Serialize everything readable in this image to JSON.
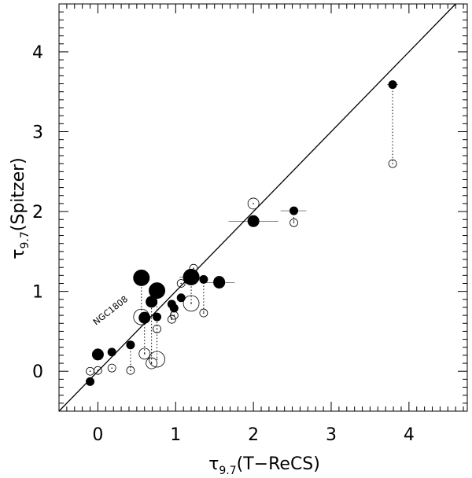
{
  "chart_data": {
    "type": "scatter",
    "title": "",
    "xlabel": "τ9.7(T−ReCS)",
    "ylabel": "τ9.7(Spitzer)",
    "x_label_main": "τ",
    "x_label_sub": "9.7",
    "x_label_rest": "(T−ReCS)",
    "y_label_main": "τ",
    "y_label_sub": "9.7",
    "y_label_rest": "(Spitzer)",
    "xlim": [
      -0.5,
      4.75
    ],
    "ylim": [
      -0.5,
      4.6
    ],
    "xticks": [
      "0",
      "1",
      "2",
      "3",
      "4"
    ],
    "yticks": [
      "0",
      "1",
      "2",
      "3",
      "4"
    ],
    "grid": false,
    "legend": "none",
    "one_to_one_line": true,
    "annotation": "NGC1808",
    "series": [
      {
        "marker": "filled",
        "points": [
          {
            "x": -0.1,
            "y": -0.13,
            "size": "small"
          },
          {
            "x": 0.0,
            "y": 0.21,
            "size": "medium"
          },
          {
            "x": 0.18,
            "y": 0.24,
            "size": "small"
          },
          {
            "x": 0.42,
            "y": 0.33,
            "size": "small"
          },
          {
            "x": 0.6,
            "y": 0.67,
            "size": "medium"
          },
          {
            "x": 0.76,
            "y": 0.68,
            "size": "small"
          },
          {
            "x": 0.56,
            "y": 1.17,
            "size": "large"
          },
          {
            "x": 0.69,
            "y": 0.87,
            "size": "medium"
          },
          {
            "x": 0.76,
            "y": 1.01,
            "size": "large"
          },
          {
            "x": 0.95,
            "y": 0.84,
            "size": "small"
          },
          {
            "x": 0.98,
            "y": 0.79,
            "size": "small"
          },
          {
            "x": 1.07,
            "y": 0.92,
            "size": "small"
          },
          {
            "x": 1.2,
            "y": 1.18,
            "size": "large"
          },
          {
            "x": 1.36,
            "y": 1.15,
            "size": "small"
          },
          {
            "x": 1.56,
            "y": 1.11,
            "size": "medium"
          },
          {
            "x": 2.0,
            "y": 1.88,
            "size": "medium"
          },
          {
            "x": 2.52,
            "y": 2.01,
            "size": "small"
          },
          {
            "x": 3.79,
            "y": 3.59,
            "size": "small"
          }
        ]
      },
      {
        "marker": "open",
        "points": [
          {
            "x": -0.1,
            "y": 0.0,
            "size": "small"
          },
          {
            "x": 0.0,
            "y": 0.01,
            "size": "small"
          },
          {
            "x": 0.18,
            "y": 0.04,
            "size": "small"
          },
          {
            "x": 0.42,
            "y": 0.01,
            "size": "small"
          },
          {
            "x": 0.56,
            "y": 0.68,
            "size": "large"
          },
          {
            "x": 0.6,
            "y": 0.22,
            "size": "medium"
          },
          {
            "x": 0.69,
            "y": 0.1,
            "size": "medium"
          },
          {
            "x": 0.76,
            "y": 0.15,
            "size": "large"
          },
          {
            "x": 0.76,
            "y": 0.53,
            "size": "small"
          },
          {
            "x": 0.95,
            "y": 0.65,
            "size": "small"
          },
          {
            "x": 0.98,
            "y": 0.7,
            "size": "small"
          },
          {
            "x": 1.07,
            "y": 1.1,
            "size": "small"
          },
          {
            "x": 1.2,
            "y": 0.85,
            "size": "large"
          },
          {
            "x": 1.23,
            "y": 1.29,
            "size": "small"
          },
          {
            "x": 1.36,
            "y": 0.73,
            "size": "small"
          },
          {
            "x": 1.56,
            "y": 1.12,
            "size": "medium"
          },
          {
            "x": 2.0,
            "y": 2.1,
            "size": "medium"
          },
          {
            "x": 2.52,
            "y": 1.86,
            "size": "small"
          },
          {
            "x": 3.79,
            "y": 2.6,
            "size": "small"
          }
        ]
      }
    ],
    "connectors": [
      {
        "x": 0.42,
        "y1": 0.33,
        "y2": 0.01
      },
      {
        "x": 0.6,
        "y1": 0.67,
        "y2": 0.22
      },
      {
        "x": 0.69,
        "y1": 0.87,
        "y2": 0.1
      },
      {
        "x": 0.76,
        "y1": 1.01,
        "y2": 0.15
      },
      {
        "x": 0.56,
        "y1": 1.17,
        "y2": 0.68
      },
      {
        "x": 0.95,
        "y1": 0.84,
        "y2": 0.65
      },
      {
        "x": 1.2,
        "y1": 1.18,
        "y2": 0.85
      },
      {
        "x": 1.36,
        "y1": 1.15,
        "y2": 0.73
      },
      {
        "x": 2.52,
        "y1": 2.01,
        "y2": 1.86
      },
      {
        "x": 3.79,
        "y1": 3.59,
        "y2": 2.6
      }
    ],
    "xerrors": [
      {
        "x": 2.0,
        "y": 1.88,
        "lo": 1.68,
        "hi": 2.32
      },
      {
        "x": 2.52,
        "y": 2.01,
        "lo": 2.35,
        "hi": 2.68
      },
      {
        "x": 1.56,
        "y": 1.11,
        "lo": 1.35,
        "hi": 1.76
      },
      {
        "x": 1.2,
        "y": 1.18,
        "lo": 1.05,
        "hi": 1.35
      },
      {
        "x": 3.79,
        "y": 3.59,
        "lo": 3.72,
        "hi": 3.86
      }
    ]
  }
}
